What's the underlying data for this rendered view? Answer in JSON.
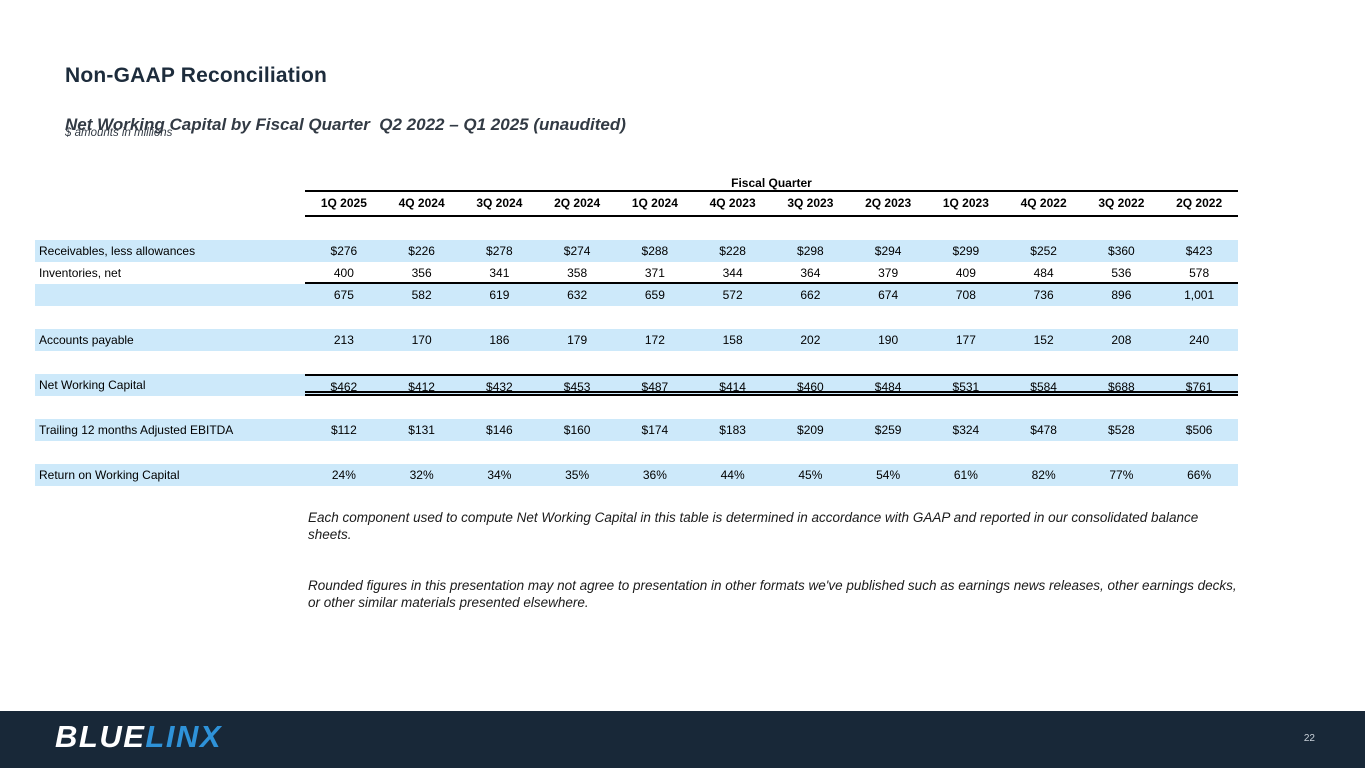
{
  "header": {
    "title": "Non-GAAP Reconciliation",
    "subtitle": "Net Working Capital by Fiscal Quarter  Q2 2022 – Q1 2025 (unaudited)",
    "units_note": "$ amounts in millions"
  },
  "table": {
    "group_header": "Fiscal Quarter",
    "columns": [
      "1Q 2025",
      "4Q 2024",
      "3Q 2024",
      "2Q 2024",
      "1Q 2024",
      "4Q 2023",
      "3Q 2023",
      "2Q 2023",
      "1Q 2023",
      "4Q 2022",
      "3Q 2022",
      "2Q 2022"
    ],
    "rows": [
      {
        "label": "Receivables, less allowances",
        "values": [
          "$276",
          "$226",
          "$278",
          "$274",
          "$288",
          "$228",
          "$298",
          "$294",
          "$299",
          "$252",
          "$360",
          "$423"
        ],
        "highlight": true,
        "rule": "none",
        "section_break": true
      },
      {
        "label": "Inventories, net",
        "values": [
          "400",
          "356",
          "341",
          "358",
          "371",
          "344",
          "364",
          "379",
          "409",
          "484",
          "536",
          "578"
        ],
        "highlight": false,
        "rule": "under",
        "section_break": false
      },
      {
        "label": "",
        "values": [
          "675",
          "582",
          "619",
          "632",
          "659",
          "572",
          "662",
          "674",
          "708",
          "736",
          "896",
          "1,001"
        ],
        "highlight": true,
        "rule": "none",
        "section_break": false
      },
      {
        "label": "Accounts payable",
        "values": [
          "213",
          "170",
          "186",
          "179",
          "172",
          "158",
          "202",
          "190",
          "177",
          "152",
          "208",
          "240"
        ],
        "highlight": true,
        "rule": "none",
        "section_break": true
      },
      {
        "label": "Net Working Capital",
        "values": [
          "$462",
          "$412",
          "$432",
          "$453",
          "$487",
          "$414",
          "$460",
          "$484",
          "$531",
          "$584",
          "$688",
          "$761"
        ],
        "highlight": true,
        "rule": "total",
        "section_break": true
      },
      {
        "label": "Trailing 12 months Adjusted EBITDA",
        "values": [
          "$112",
          "$131",
          "$146",
          "$160",
          "$174",
          "$183",
          "$209",
          "$259",
          "$324",
          "$478",
          "$528",
          "$506"
        ],
        "highlight": true,
        "rule": "none",
        "section_break": true
      },
      {
        "label": "Return on Working Capital",
        "values": [
          "24%",
          "32%",
          "34%",
          "35%",
          "36%",
          "44%",
          "45%",
          "54%",
          "61%",
          "82%",
          "77%",
          "66%"
        ],
        "highlight": true,
        "rule": "none",
        "section_break": true
      }
    ]
  },
  "notes": [
    "Each component used to compute Net Working Capital in this table is determined in accordance with GAAP and reported in our consolidated balance sheets.",
    "Rounded figures in this presentation may not agree to presentation in other formats we've published such as earnings news releases, other earnings decks, or other similar materials presented elsewhere."
  ],
  "footer": {
    "logo_part1": "BLUE",
    "logo_part2": "LINX",
    "page_number": "22"
  },
  "colors": {
    "row_highlight": "#cde9fa",
    "footer_bar": "#182838",
    "logo_blue": "#2E92D8",
    "title_text": "#1d2c3c"
  }
}
